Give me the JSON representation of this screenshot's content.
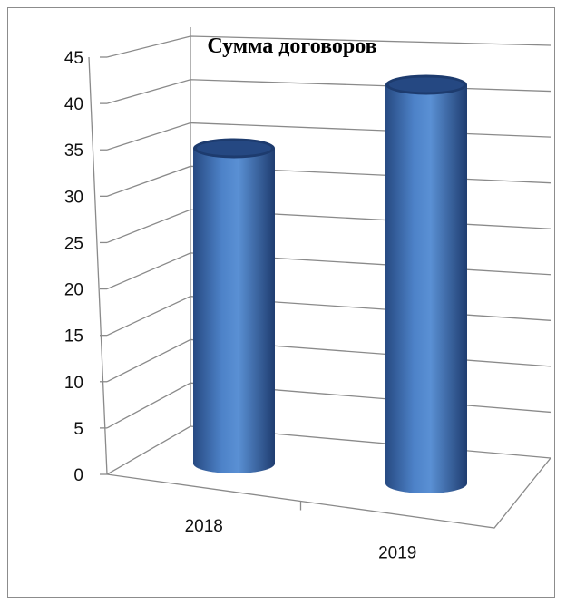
{
  "chart_data": {
    "type": "bar",
    "style": "3d-cylinder",
    "title": "Сумма договоров",
    "categories": [
      "2018",
      "2019"
    ],
    "values": [
      34,
      43
    ],
    "ylim": [
      0,
      45
    ],
    "yticks": [
      "0",
      "5",
      "10",
      "15",
      "20",
      "25",
      "30",
      "35",
      "40",
      "45"
    ],
    "grid": true,
    "legend": "none",
    "bar_color": "#3f6fb5"
  }
}
